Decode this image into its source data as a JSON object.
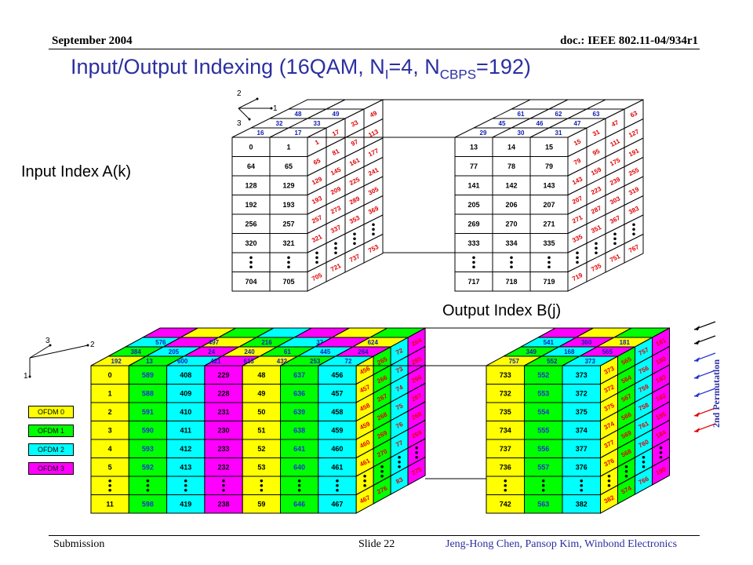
{
  "header": {
    "date": "September 2004",
    "doc": "doc.: IEEE 802.11-04/934r1"
  },
  "title": {
    "main": "Input/Output Indexing (16QAM, N",
    "sub_i": "I",
    "mid": "=4, N",
    "sub_cbps": "CBPS",
    "end": "=192)"
  },
  "labels": {
    "input": "Input Index A(k)",
    "output": "Output Index B(j)",
    "permutation": "2nd Permutation"
  },
  "axes": {
    "top": [
      "2",
      "1",
      "3"
    ],
    "bottom": [
      "3",
      "2",
      "1"
    ]
  },
  "legend": [
    {
      "label": "OFDM 0",
      "color": "#ffff00"
    },
    {
      "label": "OFDM 1",
      "color": "#00ff00"
    },
    {
      "label": "OFDM 2",
      "color": "#00ffff"
    },
    {
      "label": "OFDM 3",
      "color": "#ff00ff"
    }
  ],
  "input_left": {
    "front": [
      [
        "0",
        "1"
      ],
      [
        "64",
        "65"
      ],
      [
        "128",
        "129"
      ],
      [
        "192",
        "193"
      ],
      [
        "256",
        "257"
      ],
      [
        "320",
        "321"
      ],
      [
        ":",
        ":"
      ],
      [
        "704",
        "705"
      ]
    ],
    "top_rows": [
      [
        "16",
        "17"
      ],
      [
        "32",
        "33"
      ],
      [
        "48",
        "49"
      ]
    ],
    "side": [
      [
        "1",
        "17",
        "33",
        "49"
      ],
      [
        "65",
        "81",
        "97",
        "113"
      ],
      [
        "129",
        "145",
        "161",
        "177"
      ],
      [
        "193",
        "209",
        "225",
        "241"
      ],
      [
        "257",
        "273",
        "289",
        "305"
      ],
      [
        "321",
        "337",
        "353",
        "369"
      ],
      [
        ":",
        ":",
        ":",
        ":"
      ],
      [
        "705",
        "721",
        "737",
        "753"
      ]
    ]
  },
  "input_right": {
    "front": [
      [
        "13",
        "14",
        "15"
      ],
      [
        "77",
        "78",
        "79"
      ],
      [
        "141",
        "142",
        "143"
      ],
      [
        "205",
        "206",
        "207"
      ],
      [
        "269",
        "270",
        "271"
      ],
      [
        "333",
        "334",
        "335"
      ],
      [
        ":",
        ":",
        ":"
      ],
      [
        "717",
        "718",
        "719"
      ]
    ],
    "top_rows": [
      [
        "29",
        "30",
        "31"
      ],
      [
        "45",
        "46",
        "47"
      ],
      [
        "61",
        "62",
        "63"
      ]
    ],
    "side": [
      [
        "15",
        "31",
        "47",
        "63"
      ],
      [
        "79",
        "95",
        "111",
        "127"
      ],
      [
        "143",
        "159",
        "175",
        "191"
      ],
      [
        "207",
        "223",
        "239",
        "255"
      ],
      [
        "271",
        "287",
        "303",
        "319"
      ],
      [
        "335",
        "351",
        "367",
        "383"
      ],
      [
        ":",
        ":",
        ":",
        ":"
      ],
      [
        "719",
        "735",
        "751",
        "767"
      ]
    ]
  },
  "output_left": {
    "front": [
      [
        "0",
        "589",
        "408",
        "229",
        "48",
        "637",
        "456"
      ],
      [
        "1",
        "588",
        "409",
        "228",
        "49",
        "636",
        "457"
      ],
      [
        "2",
        "591",
        "410",
        "231",
        "50",
        "639",
        "458"
      ],
      [
        "3",
        "590",
        "411",
        "230",
        "51",
        "638",
        "459"
      ],
      [
        "4",
        "593",
        "412",
        "233",
        "52",
        "641",
        "460"
      ],
      [
        "5",
        "592",
        "413",
        "232",
        "53",
        "640",
        "461"
      ],
      [
        ":",
        ":",
        ":",
        ":",
        ":",
        ":",
        ":"
      ],
      [
        "11",
        "598",
        "419",
        "238",
        "59",
        "646",
        "467"
      ]
    ],
    "top_rows": [
      [
        "192",
        "13",
        "600",
        "421",
        "613",
        "432",
        "253",
        "72"
      ],
      [
        "384",
        "205",
        "24",
        "240",
        "61",
        "445",
        "264"
      ],
      [
        "576",
        "497",
        "216",
        "37",
        "624"
      ]
    ],
    "side": [
      [
        "456",
        "265",
        "72",
        "264"
      ],
      [
        "457",
        "266",
        "73",
        "265"
      ],
      [
        "458",
        "267",
        "74",
        "266"
      ],
      [
        "459",
        "268",
        "75",
        "267"
      ],
      [
        "460",
        "269",
        "76",
        "268"
      ],
      [
        "461",
        "270",
        "77",
        "269"
      ],
      [
        ":",
        ":",
        ":",
        ":"
      ],
      [
        "467",
        "276",
        "83",
        "275"
      ]
    ]
  },
  "output_right": {
    "front": [
      [
        "733",
        "552",
        "373"
      ],
      [
        "732",
        "553",
        "372"
      ],
      [
        "735",
        "554",
        "375"
      ],
      [
        "734",
        "555",
        "374"
      ],
      [
        "737",
        "556",
        "377"
      ],
      [
        "736",
        "557",
        "376"
      ],
      [
        ":",
        ":",
        ":"
      ],
      [
        "742",
        "563",
        "382"
      ]
    ],
    "top_rows": [
      [
        "757",
        "552",
        "373"
      ],
      [
        "349",
        "168",
        "565"
      ],
      [
        "541",
        "360",
        "181"
      ]
    ],
    "side": [
      [
        "373",
        "565",
        "757",
        "181"
      ],
      [
        "372",
        "564",
        "756",
        "180"
      ],
      [
        "375",
        "567",
        "759",
        "183"
      ],
      [
        "374",
        "566",
        "758",
        "182"
      ],
      [
        "377",
        "569",
        "761",
        "185"
      ],
      [
        "376",
        "568",
        "760",
        "184"
      ],
      [
        ":",
        ":",
        ":",
        ":"
      ],
      [
        "382",
        "574",
        "766",
        "190"
      ]
    ]
  },
  "footer": {
    "left": "Submission",
    "center": "Slide 22",
    "right": "Jeng-Hong Chen, Pansop Kim, Winbond Electronics"
  }
}
